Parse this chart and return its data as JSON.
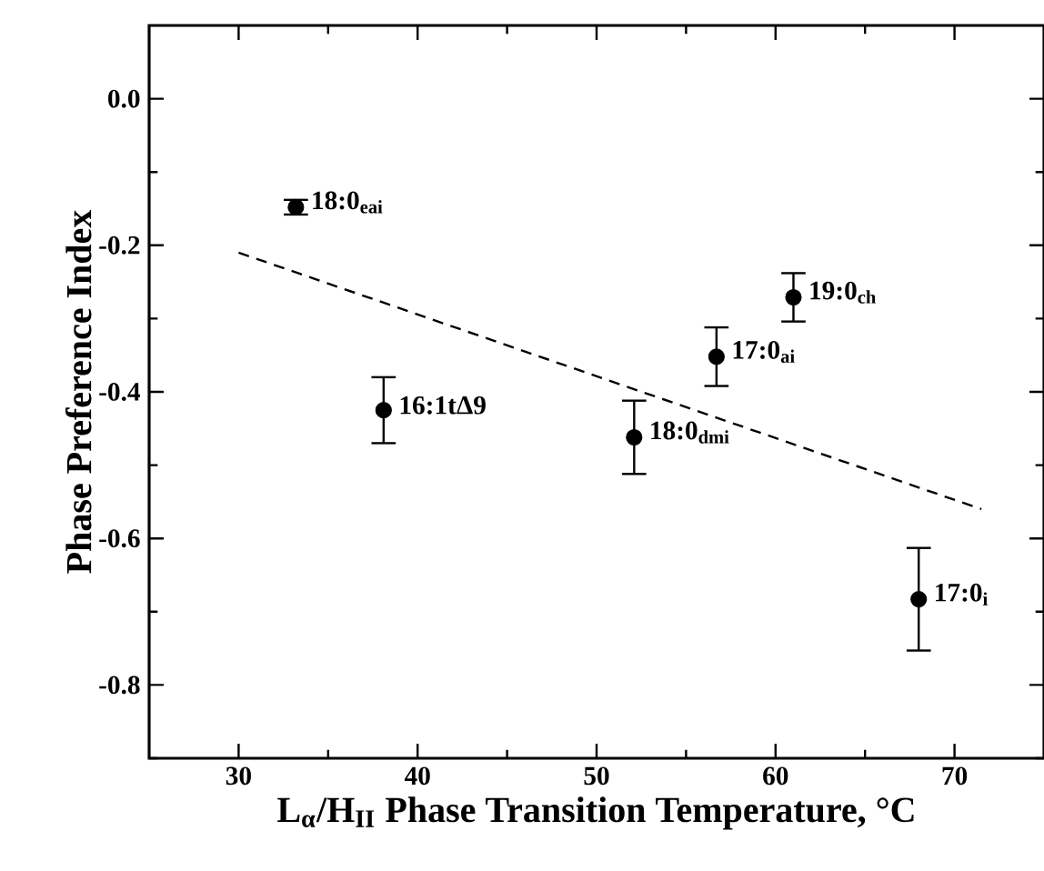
{
  "chart_data": {
    "type": "scatter",
    "xlabel": "L$_{α}$/H$_{II}$ Phase Transition Temperature, °C",
    "ylabel": "Phase Preference Index",
    "xlim": [
      25,
      75
    ],
    "ylim": [
      -0.9,
      0.1
    ],
    "xticks": [
      30,
      {
        "value": 35,
        "label": null
      },
      40,
      {
        "value": 45,
        "label": null
      },
      50,
      {
        "value": 55,
        "label": null
      },
      60,
      {
        "value": 65,
        "label": null
      },
      70
    ],
    "yticks": [
      {
        "value": -0.9,
        "label": null
      },
      -0.8,
      {
        "value": -0.7,
        "label": null
      },
      -0.6,
      {
        "value": -0.5,
        "label": null
      },
      -0.4,
      {
        "value": -0.3,
        "label": null
      },
      -0.2,
      {
        "value": -0.1,
        "label": null
      },
      {
        "value": 0,
        "label": "0.0"
      }
    ],
    "series": [
      {
        "type": "scatter",
        "color": "#000000",
        "marker": "circle",
        "x": [
          33.2,
          38.1,
          52.1,
          56.7,
          61.0,
          68.0
        ],
        "values": [
          -0.148,
          -0.425,
          -0.462,
          -0.352,
          -0.271,
          -0.683
        ],
        "errors": [
          0.01,
          0.045,
          0.05,
          0.04,
          0.033,
          0.07
        ]
      },
      {
        "type": "line",
        "color": "#000000",
        "marker": "none",
        "line_style": "dashed",
        "x": [
          30,
          71.5
        ],
        "values": [
          -0.21,
          -0.56
        ]
      }
    ],
    "annotations": [
      {
        "text": "18:0$_{eai}$",
        "x": 33.2,
        "y": -0.148
      },
      {
        "text": "16:1tΔ9",
        "x": 38.1,
        "y": -0.425
      },
      {
        "text": "18:0$_{dmi}$",
        "x": 52.1,
        "y": -0.462
      },
      {
        "text": "17:0$_{ai}$",
        "x": 56.7,
        "y": -0.352
      },
      {
        "text": "19:0$_{ch}$",
        "x": 61.0,
        "y": -0.271
      },
      {
        "text": "17:0$_{i}$",
        "x": 68.0,
        "y": -0.683
      }
    ]
  }
}
